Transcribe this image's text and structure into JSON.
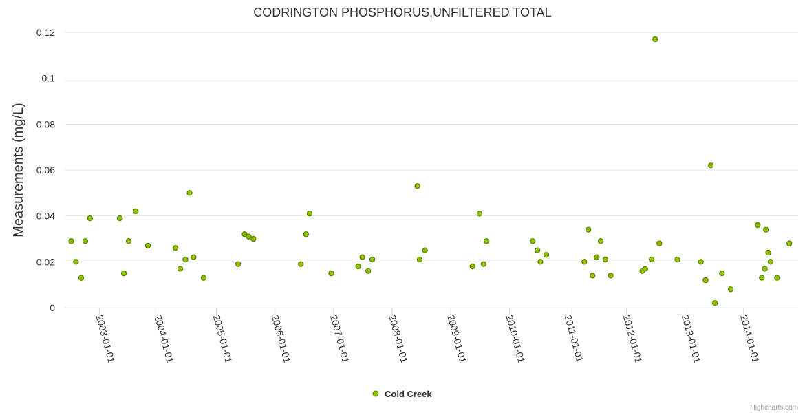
{
  "chart_data": {
    "type": "scatter",
    "title": "CODRINGTON PHOSPHORUS,UNFILTERED TOTAL",
    "xlabel": "",
    "ylabel": "Measurements (mg/L)",
    "ylim": [
      0,
      0.12
    ],
    "yticks": [
      "0",
      "0.02",
      "0.04",
      "0.06",
      "0.08",
      "0.1",
      "0.12"
    ],
    "ytick_values": [
      0,
      0.02,
      0.04,
      0.06,
      0.08,
      0.1,
      0.12
    ],
    "xlim": [
      2002.42,
      2014.93
    ],
    "xticks": [
      "2003-01-01",
      "2004-01-01",
      "2005-01-01",
      "2006-01-01",
      "2007-01-01",
      "2008-01-01",
      "2009-01-01",
      "2010-01-01",
      "2011-01-01",
      "2012-01-01",
      "2013-01-01",
      "2014-01-01"
    ],
    "xtick_values": [
      2003,
      2004,
      2005,
      2006,
      2007,
      2008,
      2009,
      2010,
      2011,
      2012,
      2013,
      2014
    ],
    "grid": true,
    "legend_position": "bottom-center",
    "color": "#90c000",
    "series": [
      {
        "name": "Cold Creek",
        "points": [
          {
            "x": 2002.52,
            "y": 0.029
          },
          {
            "x": 2002.6,
            "y": 0.02
          },
          {
            "x": 2002.69,
            "y": 0.013
          },
          {
            "x": 2002.76,
            "y": 0.029
          },
          {
            "x": 2002.84,
            "y": 0.039
          },
          {
            "x": 2003.35,
            "y": 0.039
          },
          {
            "x": 2003.42,
            "y": 0.015
          },
          {
            "x": 2003.5,
            "y": 0.029
          },
          {
            "x": 2003.62,
            "y": 0.042
          },
          {
            "x": 2003.83,
            "y": 0.027
          },
          {
            "x": 2004.3,
            "y": 0.026
          },
          {
            "x": 2004.38,
            "y": 0.017
          },
          {
            "x": 2004.47,
            "y": 0.021
          },
          {
            "x": 2004.54,
            "y": 0.05
          },
          {
            "x": 2004.61,
            "y": 0.022
          },
          {
            "x": 2004.78,
            "y": 0.013
          },
          {
            "x": 2005.37,
            "y": 0.019
          },
          {
            "x": 2005.48,
            "y": 0.032
          },
          {
            "x": 2005.55,
            "y": 0.031
          },
          {
            "x": 2005.63,
            "y": 0.03
          },
          {
            "x": 2006.44,
            "y": 0.019
          },
          {
            "x": 2006.53,
            "y": 0.032
          },
          {
            "x": 2006.59,
            "y": 0.041
          },
          {
            "x": 2006.96,
            "y": 0.015
          },
          {
            "x": 2007.42,
            "y": 0.018
          },
          {
            "x": 2007.49,
            "y": 0.022
          },
          {
            "x": 2007.59,
            "y": 0.016
          },
          {
            "x": 2007.66,
            "y": 0.021
          },
          {
            "x": 2008.43,
            "y": 0.053
          },
          {
            "x": 2008.47,
            "y": 0.021
          },
          {
            "x": 2008.56,
            "y": 0.025
          },
          {
            "x": 2009.37,
            "y": 0.018
          },
          {
            "x": 2009.49,
            "y": 0.041
          },
          {
            "x": 2009.56,
            "y": 0.019
          },
          {
            "x": 2009.61,
            "y": 0.029
          },
          {
            "x": 2010.4,
            "y": 0.029
          },
          {
            "x": 2010.48,
            "y": 0.025
          },
          {
            "x": 2010.53,
            "y": 0.02
          },
          {
            "x": 2010.63,
            "y": 0.023
          },
          {
            "x": 2011.28,
            "y": 0.02
          },
          {
            "x": 2011.35,
            "y": 0.034
          },
          {
            "x": 2011.42,
            "y": 0.014
          },
          {
            "x": 2011.49,
            "y": 0.022
          },
          {
            "x": 2011.56,
            "y": 0.029
          },
          {
            "x": 2011.64,
            "y": 0.021
          },
          {
            "x": 2011.73,
            "y": 0.014
          },
          {
            "x": 2012.27,
            "y": 0.016
          },
          {
            "x": 2012.32,
            "y": 0.017
          },
          {
            "x": 2012.43,
            "y": 0.021
          },
          {
            "x": 2012.49,
            "y": 0.117
          },
          {
            "x": 2012.56,
            "y": 0.028
          },
          {
            "x": 2012.87,
            "y": 0.021
          },
          {
            "x": 2013.27,
            "y": 0.02
          },
          {
            "x": 2013.35,
            "y": 0.012
          },
          {
            "x": 2013.44,
            "y": 0.062
          },
          {
            "x": 2013.51,
            "y": 0.002
          },
          {
            "x": 2013.63,
            "y": 0.015
          },
          {
            "x": 2013.78,
            "y": 0.008
          },
          {
            "x": 2014.24,
            "y": 0.036
          },
          {
            "x": 2014.31,
            "y": 0.013
          },
          {
            "x": 2014.38,
            "y": 0.034
          },
          {
            "x": 2014.36,
            "y": 0.017
          },
          {
            "x": 2014.42,
            "y": 0.024
          },
          {
            "x": 2014.46,
            "y": 0.02
          },
          {
            "x": 2014.57,
            "y": 0.013
          },
          {
            "x": 2014.78,
            "y": 0.028
          }
        ]
      }
    ]
  },
  "credits": "Highcharts.com"
}
